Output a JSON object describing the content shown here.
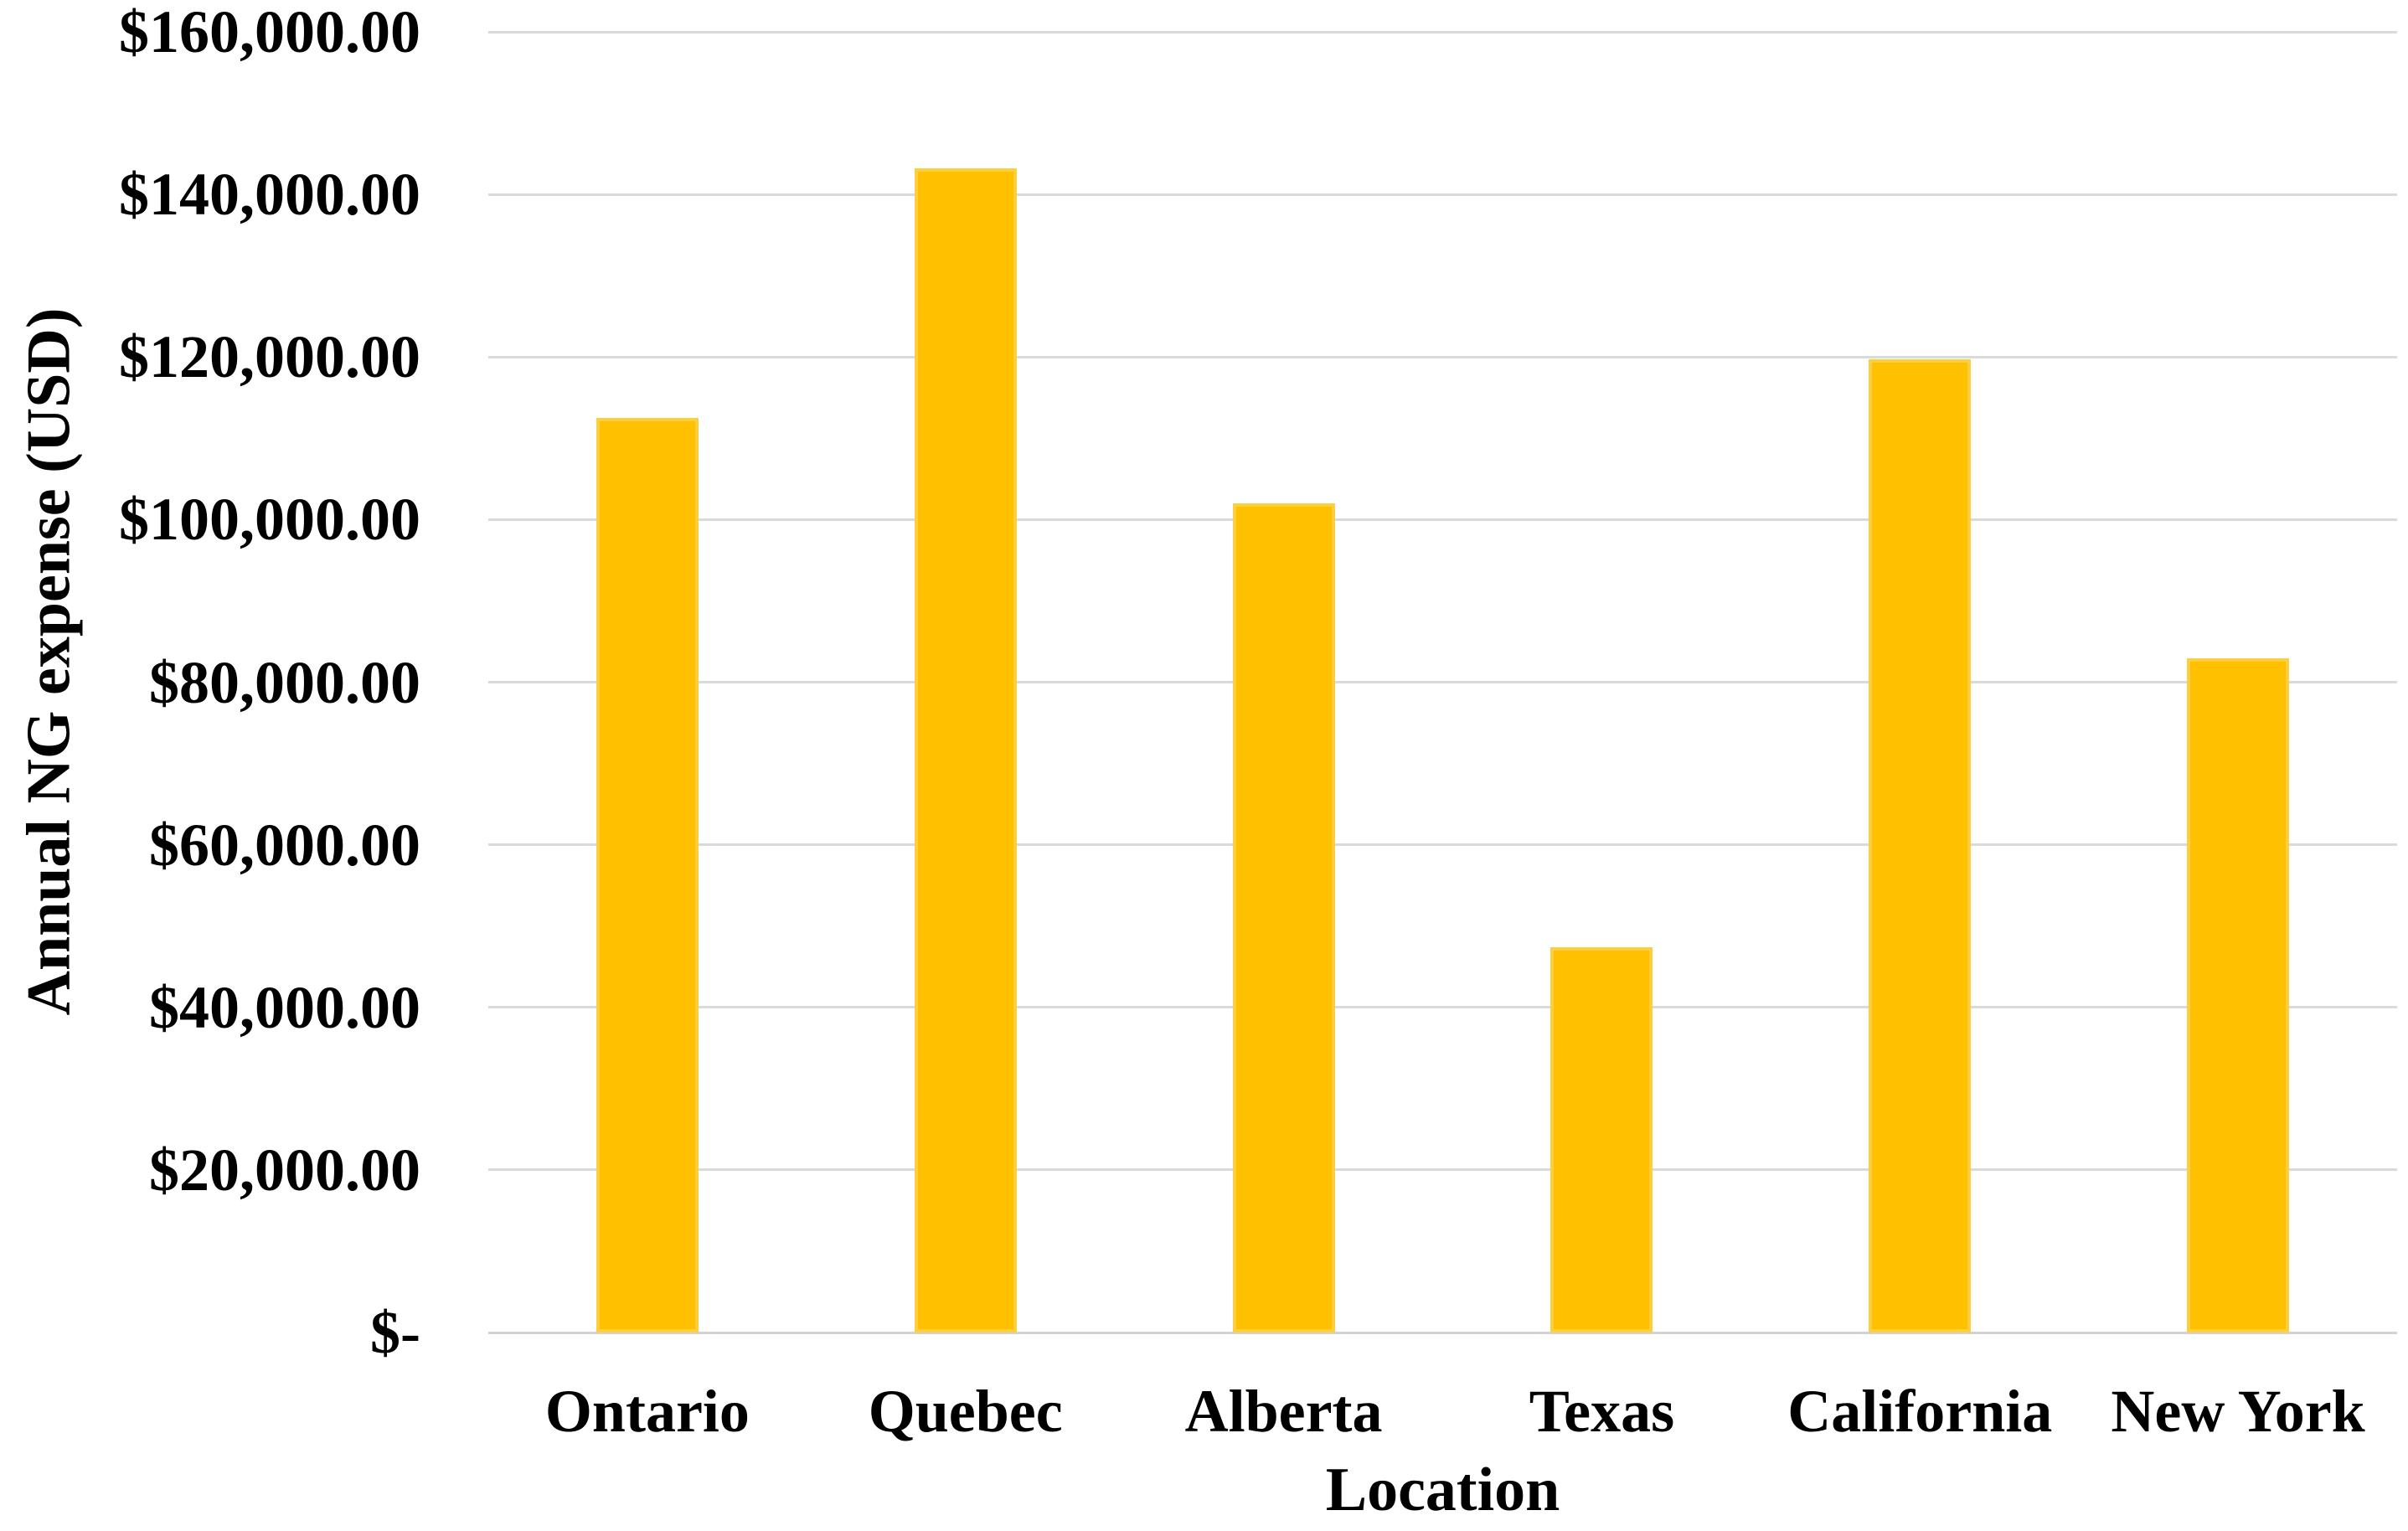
{
  "chart_data": {
    "type": "bar",
    "title": "",
    "categories": [
      "Ontario",
      "Quebec",
      "Alberta",
      "Texas",
      "California",
      "New York"
    ],
    "values": [
      112500,
      143250,
      102000,
      47400,
      119750,
      82900
    ],
    "xlabel": "Location",
    "ylabel": "Annual NG expense (USD)",
    "ylim": [
      0,
      160000
    ],
    "ytick_step": 20000,
    "yticks": [
      {
        "value": 160000,
        "label": "$160,000.00"
      },
      {
        "value": 140000,
        "label": "$140,000.00"
      },
      {
        "value": 120000,
        "label": "$120,000.00"
      },
      {
        "value": 100000,
        "label": "$100,000.00"
      },
      {
        "value": 80000,
        "label": "$80,000.00"
      },
      {
        "value": 60000,
        "label": "$60,000.00"
      },
      {
        "value": 40000,
        "label": "$40,000.00"
      },
      {
        "value": 20000,
        "label": "$20,000.00"
      },
      {
        "value": 0,
        "label": "$-"
      }
    ],
    "grid": true,
    "legend_position": "none",
    "colors": {
      "bar_fill": "#FFC000",
      "bar_edge": "#FFCE3F",
      "gridline": "#DADADA",
      "axis_line": "#D2D2D2",
      "text": "#000000",
      "background": "#FFFFFF"
    }
  }
}
